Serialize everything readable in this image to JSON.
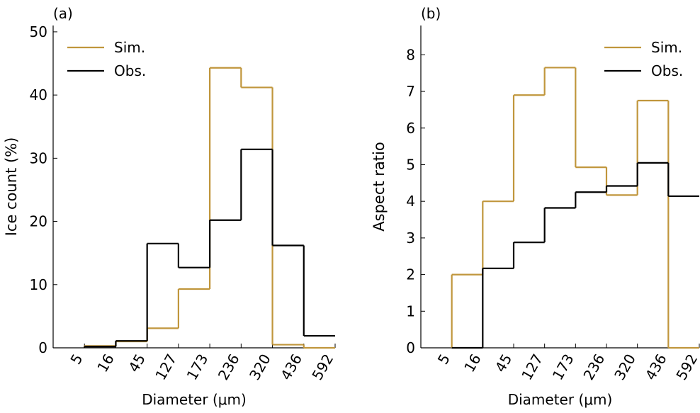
{
  "chart_data": [
    {
      "type": "histogram",
      "label": "(a)",
      "x_label": "Diameter (μm)",
      "y_label": "Ice count (%)",
      "bins": [
        5,
        16,
        45,
        127,
        173,
        236,
        320,
        436,
        592
      ],
      "ylim": [
        0,
        51
      ],
      "yticks": [
        0,
        10,
        20,
        30,
        40,
        50
      ],
      "legend": "upper-left",
      "series": [
        {
          "name": "Sim.",
          "color": "#c0963c",
          "values": [
            0.3,
            1.0,
            3.1,
            9.3,
            44.3,
            41.2,
            0.5,
            0
          ]
        },
        {
          "name": "Obs.",
          "color": "#000000",
          "values": [
            0.2,
            1.1,
            16.5,
            12.7,
            20.2,
            31.4,
            16.2,
            1.9
          ]
        }
      ]
    },
    {
      "type": "histogram",
      "label": "(b)",
      "x_label": "Diameter (μm)",
      "y_label": "Aspect ratio",
      "bins": [
        5,
        16,
        45,
        127,
        173,
        236,
        320,
        436,
        592
      ],
      "ylim": [
        0,
        8.8
      ],
      "yticks": [
        0,
        1,
        2,
        3,
        4,
        5,
        6,
        7,
        8
      ],
      "legend": "upper-right",
      "series": [
        {
          "name": "Sim.",
          "color": "#c0963c",
          "values": [
            2.0,
            4.0,
            6.9,
            7.65,
            4.93,
            4.17,
            6.75,
            0
          ]
        },
        {
          "name": "Obs.",
          "color": "#000000",
          "values": [
            0,
            2.17,
            2.88,
            3.82,
            4.25,
            4.42,
            5.05,
            4.14
          ]
        }
      ]
    }
  ]
}
